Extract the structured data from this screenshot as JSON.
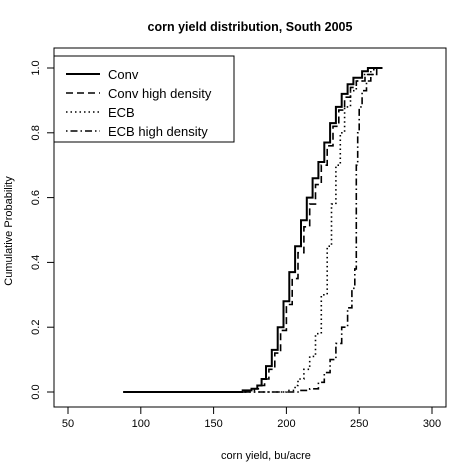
{
  "chart_data": {
    "type": "line",
    "title": "corn yield distribution, South 2005",
    "xlabel": "corn yield, bu/acre",
    "ylabel": "Cumulative Probability",
    "xlim": [
      50,
      300
    ],
    "ylim": [
      0,
      1
    ],
    "x_ticks": [
      50,
      100,
      150,
      200,
      250,
      300
    ],
    "y_ticks": [
      0.0,
      0.2,
      0.4,
      0.6,
      0.8,
      1.0
    ],
    "x_tick_labels": [
      "50",
      "100",
      "150",
      "200",
      "250",
      "300"
    ],
    "y_tick_labels": [
      "0.0",
      "0.2",
      "0.4",
      "0.6",
      "0.8",
      "1.0"
    ],
    "grid": false,
    "legend_position": "top-left",
    "series": [
      {
        "name": "Conv",
        "line_style": "solid",
        "points": [
          [
            88,
            0
          ],
          [
            160,
            0
          ],
          [
            170,
            0.005
          ],
          [
            176,
            0.01
          ],
          [
            180,
            0.02
          ],
          [
            183,
            0.04
          ],
          [
            186,
            0.08
          ],
          [
            190,
            0.13
          ],
          [
            194,
            0.2
          ],
          [
            198,
            0.28
          ],
          [
            202,
            0.37
          ],
          [
            206,
            0.45
          ],
          [
            210,
            0.53
          ],
          [
            214,
            0.6
          ],
          [
            218,
            0.66
          ],
          [
            222,
            0.71
          ],
          [
            226,
            0.77
          ],
          [
            230,
            0.83
          ],
          [
            234,
            0.88
          ],
          [
            238,
            0.92
          ],
          [
            242,
            0.95
          ],
          [
            246,
            0.97
          ],
          [
            252,
            0.99
          ],
          [
            256,
            1.0
          ],
          [
            266,
            1.0
          ]
        ]
      },
      {
        "name": "Conv high density",
        "line_style": "dashed",
        "points": [
          [
            88,
            0
          ],
          [
            160,
            0
          ],
          [
            172,
            0.005
          ],
          [
            178,
            0.01
          ],
          [
            182,
            0.02
          ],
          [
            185,
            0.04
          ],
          [
            188,
            0.07
          ],
          [
            192,
            0.12
          ],
          [
            196,
            0.19
          ],
          [
            200,
            0.27
          ],
          [
            204,
            0.35
          ],
          [
            208,
            0.43
          ],
          [
            212,
            0.51
          ],
          [
            216,
            0.58
          ],
          [
            220,
            0.64
          ],
          [
            224,
            0.7
          ],
          [
            228,
            0.76
          ],
          [
            232,
            0.82
          ],
          [
            236,
            0.87
          ],
          [
            240,
            0.91
          ],
          [
            244,
            0.94
          ],
          [
            248,
            0.96
          ],
          [
            254,
            0.98
          ],
          [
            260,
            1.0
          ],
          [
            266,
            1.0
          ]
        ]
      },
      {
        "name": "ECB",
        "line_style": "dotted",
        "points": [
          [
            88,
            0
          ],
          [
            180,
            0
          ],
          [
            200,
            0.005
          ],
          [
            206,
            0.02
          ],
          [
            208,
            0.04
          ],
          [
            212,
            0.07
          ],
          [
            216,
            0.11
          ],
          [
            220,
            0.18
          ],
          [
            224,
            0.3
          ],
          [
            228,
            0.45
          ],
          [
            231,
            0.58
          ],
          [
            234,
            0.7
          ],
          [
            237,
            0.8
          ],
          [
            240,
            0.88
          ],
          [
            244,
            0.93
          ],
          [
            248,
            0.96
          ],
          [
            252,
            0.98
          ],
          [
            258,
            1.0
          ],
          [
            266,
            1.0
          ]
        ]
      },
      {
        "name": "ECB high density",
        "line_style": "dotdash",
        "points": [
          [
            88,
            0
          ],
          [
            200,
            0
          ],
          [
            210,
            0.005
          ],
          [
            216,
            0.01
          ],
          [
            222,
            0.03
          ],
          [
            226,
            0.06
          ],
          [
            230,
            0.1
          ],
          [
            234,
            0.15
          ],
          [
            238,
            0.2
          ],
          [
            242,
            0.26
          ],
          [
            245,
            0.32
          ],
          [
            247,
            0.38
          ],
          [
            248,
            0.5
          ],
          [
            248,
            0.7
          ],
          [
            249,
            0.8
          ],
          [
            250,
            0.88
          ],
          [
            252,
            0.93
          ],
          [
            255,
            0.96
          ],
          [
            258,
            0.98
          ],
          [
            262,
            1.0
          ],
          [
            266,
            1.0
          ]
        ]
      }
    ]
  }
}
